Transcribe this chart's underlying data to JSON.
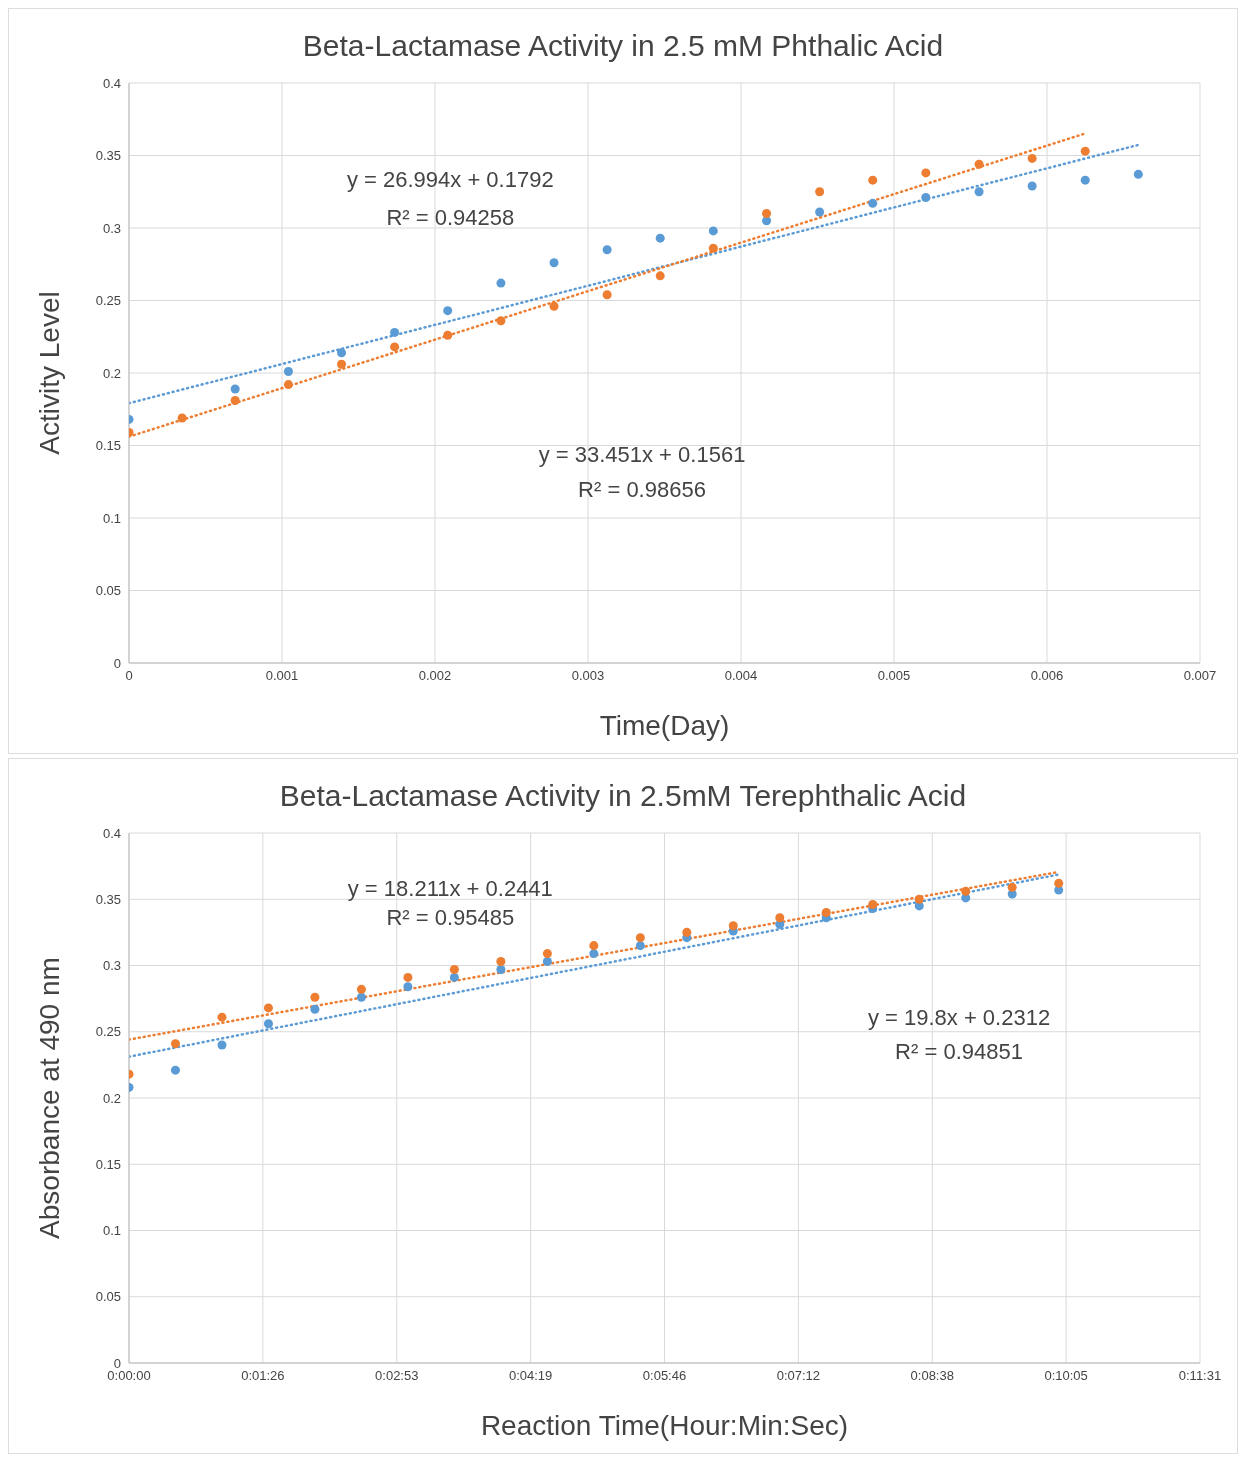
{
  "chart_data": [
    {
      "type": "scatter",
      "title": "Beta-Lactamase Activity in 2.5 mM Phthalic Acid",
      "xlabel": "Time(Day)",
      "ylabel": "Activity Level",
      "xlim": [
        0,
        0.007
      ],
      "xticks": [
        0,
        0.001,
        0.002,
        0.003,
        0.004,
        0.005,
        0.006,
        0.007
      ],
      "ylim": [
        0,
        0.4
      ],
      "yticks": [
        0,
        0.05,
        0.1,
        0.15,
        0.2,
        0.25,
        0.3,
        0.35,
        0.4
      ],
      "grid": true,
      "legend": false,
      "marker": "circle",
      "series": [
        {
          "color": "#5b9bd5",
          "x": [
            0,
            0.000694,
            0.001042,
            0.001389,
            0.001736,
            0.002083,
            0.002431,
            0.002778,
            0.003125,
            0.003472,
            0.003819,
            0.004167,
            0.004514,
            0.004861,
            0.005208,
            0.005556,
            0.005903,
            0.00625,
            0.006597
          ],
          "values": [
            0.168,
            0.189,
            0.201,
            0.214,
            0.228,
            0.243,
            0.262,
            0.276,
            0.285,
            0.293,
            0.298,
            0.305,
            0.311,
            0.317,
            0.321,
            0.325,
            0.329,
            0.333,
            0.337
          ]
        },
        {
          "color": "#ed7d31",
          "x": [
            0,
            0.000347,
            0.000694,
            0.001042,
            0.001389,
            0.001736,
            0.002083,
            0.002431,
            0.002778,
            0.003125,
            0.003472,
            0.003819,
            0.004167,
            0.004514,
            0.004861,
            0.005208,
            0.005556,
            0.005903,
            0.00625
          ],
          "values": [
            0.159,
            0.169,
            0.181,
            0.192,
            0.206,
            0.218,
            0.226,
            0.236,
            0.246,
            0.254,
            0.267,
            0.286,
            0.31,
            0.325,
            0.333,
            0.338,
            0.344,
            0.348,
            0.353
          ]
        },
        {
          "type": "line",
          "marker": "none",
          "color": "#5b9bd5",
          "line_style": "dotted",
          "x": [
            0,
            0.006597
          ],
          "values": [
            0.1792,
            0.3573
          ]
        },
        {
          "type": "line",
          "marker": "none",
          "color": "#ed7d31",
          "line_style": "dotted",
          "x": [
            0,
            0.00625
          ],
          "values": [
            0.1561,
            0.3652
          ]
        }
      ],
      "annotations": [
        "y = 26.994x + 0.1792",
        "R² = 0.94258",
        "y = 33.451x + 0.1561",
        "R² = 0.98656"
      ]
    },
    {
      "type": "scatter",
      "title": "Beta-Lactamase Activity in 2.5mM Terephthalic Acid",
      "xlabel": "Reaction Time(Hour:Min:Sec)",
      "ylabel": "Absorbance at 490 nm",
      "xlim": [
        0,
        0.192
      ],
      "xticks": [
        {
          "value": 0,
          "label": "0:00:00"
        },
        {
          "value": 0.024,
          "label": "0:01:26"
        },
        {
          "value": 0.048,
          "label": "0:02:53"
        },
        {
          "value": 0.072,
          "label": "0:04:19"
        },
        {
          "value": 0.096,
          "label": "0:05:46"
        },
        {
          "value": 0.12,
          "label": "0:07:12"
        },
        {
          "value": 0.144,
          "label": "0:08:38"
        },
        {
          "value": 0.168,
          "label": "0:10:05"
        },
        {
          "value": 0.192,
          "label": "0:11:31"
        }
      ],
      "ylim": [
        0,
        0.4
      ],
      "yticks": [
        0,
        0.05,
        0.1,
        0.15,
        0.2,
        0.25,
        0.3,
        0.35,
        0.4
      ],
      "grid": true,
      "legend": false,
      "marker": "circle",
      "series": [
        {
          "color": "#5b9bd5",
          "x": [
            0,
            0.00833,
            0.01667,
            0.025,
            0.03333,
            0.04167,
            0.05,
            0.05833,
            0.06667,
            0.075,
            0.08333,
            0.09167,
            0.1,
            0.10833,
            0.11667,
            0.125,
            0.13333,
            0.14167,
            0.15,
            0.15833,
            0.16667
          ],
          "values": [
            0.208,
            0.221,
            0.24,
            0.256,
            0.267,
            0.276,
            0.284,
            0.291,
            0.297,
            0.303,
            0.309,
            0.315,
            0.321,
            0.326,
            0.331,
            0.336,
            0.343,
            0.345,
            0.351,
            0.354,
            0.357
          ]
        },
        {
          "color": "#ed7d31",
          "x": [
            0,
            0.00833,
            0.01667,
            0.025,
            0.03333,
            0.04167,
            0.05,
            0.05833,
            0.06667,
            0.075,
            0.08333,
            0.09167,
            0.1,
            0.10833,
            0.11667,
            0.125,
            0.13333,
            0.14167,
            0.15,
            0.15833,
            0.16667
          ],
          "values": [
            0.218,
            0.241,
            0.261,
            0.268,
            0.276,
            0.282,
            0.291,
            0.297,
            0.303,
            0.309,
            0.315,
            0.321,
            0.325,
            0.33,
            0.336,
            0.34,
            0.346,
            0.35,
            0.356,
            0.359,
            0.362
          ]
        },
        {
          "type": "line",
          "marker": "none",
          "color": "#5b9bd5",
          "line_style": "dotted",
          "x": [
            0,
            0.16667
          ],
          "values": [
            0.2312,
            0.3687
          ]
        },
        {
          "type": "line",
          "marker": "none",
          "color": "#ed7d31",
          "line_style": "dotted",
          "x": [
            0,
            0.16667
          ],
          "values": [
            0.2441,
            0.3706
          ]
        }
      ],
      "annotations": [
        "y = 18.211x + 0.2441",
        "R² = 0.95485",
        "y = 19.8x + 0.2312",
        "R² = 0.94851"
      ]
    }
  ]
}
